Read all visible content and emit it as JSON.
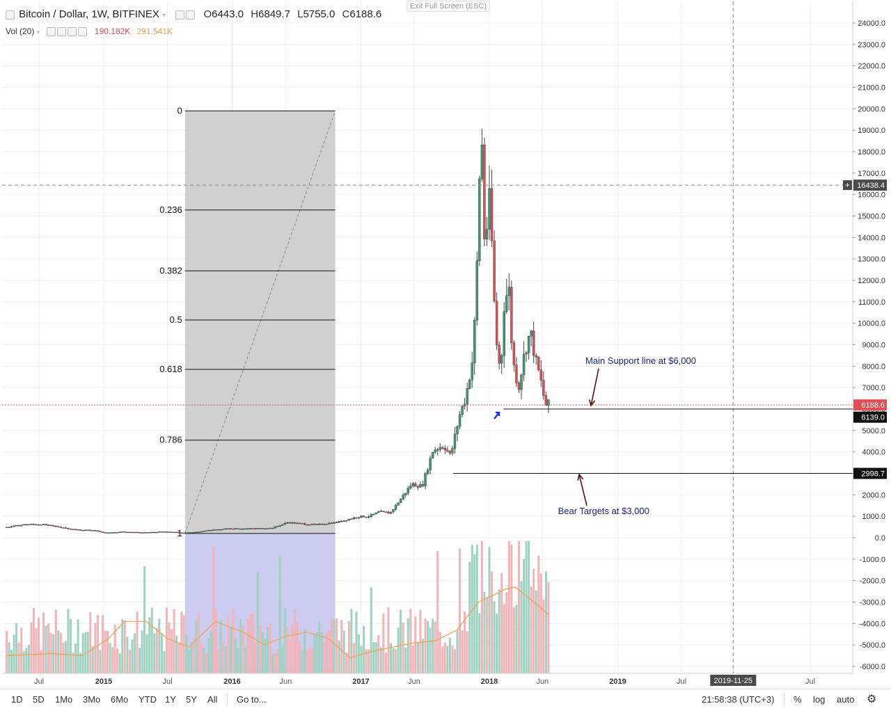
{
  "header": {
    "symbol": "Bitcoin / Dollar, 1W, BITFINEX",
    "ohlc": {
      "o_label": "O",
      "o": "6443.0",
      "h_label": "H",
      "h": "6849.7",
      "l_label": "L",
      "l": "5755.0",
      "c_label": "C",
      "c": "6188.6"
    },
    "volume_label": "Vol (20)",
    "volume_value": "190.182K",
    "volume_ma_value": "291.541K",
    "exit_fullscreen": "Exit Full Screen (ESC)"
  },
  "colors": {
    "up": "#3a9a79",
    "down": "#e04f55",
    "vol_up": "#9fd3c1",
    "vol_down": "#f2b4b8",
    "vol_ma": "#f0a050",
    "fib_zone": "#c8c8c8",
    "fib_zone_vol": "#c7c7ef",
    "annotation": "#1a237e",
    "arrow": "#5a1010",
    "price_line": "#e04f55"
  },
  "chart_data": {
    "type": "candlestick",
    "title": "Bitcoin / Dollar, 1W, BITFINEX",
    "y_ticks": [
      24000,
      23000,
      22000,
      21000,
      20000,
      19000,
      18000,
      17000,
      16000,
      15000,
      14000,
      13000,
      12000,
      11000,
      10000,
      9000,
      8000,
      7000,
      6000,
      5000,
      4000,
      3000,
      2000,
      1000,
      0,
      -1000,
      -2000,
      -3000,
      -4000,
      -5000,
      -6000
    ],
    "ylim": [
      -6300,
      24700
    ],
    "x_ticks": [
      "Jul",
      "2015",
      "Jul",
      "2016",
      "Jun",
      "2017",
      "Jun",
      "2018",
      "Jun",
      "2019",
      "Jul",
      "2019-11-25",
      "Jul"
    ],
    "x_tick_dates": [
      "2014-07-01",
      "2015-01-01",
      "2015-07-01",
      "2016-01-01",
      "2016-06-01",
      "2017-01-01",
      "2017-06-01",
      "2018-01-01",
      "2018-06-01",
      "2019-01-01",
      "2019-07-01",
      "2019-11-25",
      "2020-07-01"
    ],
    "price_series": [
      [
        "2014-03-31",
        470
      ],
      [
        "2014-06-01",
        620
      ],
      [
        "2014-07-15",
        620
      ],
      [
        "2014-09-15",
        470
      ],
      [
        "2014-10-15",
        380
      ],
      [
        "2014-12-15",
        330
      ],
      [
        "2015-01-15",
        220
      ],
      [
        "2015-03-01",
        270
      ],
      [
        "2015-05-01",
        235
      ],
      [
        "2015-07-01",
        280
      ],
      [
        "2015-08-20",
        230
      ],
      [
        "2015-09-20",
        240
      ],
      [
        "2015-11-01",
        340
      ],
      [
        "2016-01-01",
        430
      ],
      [
        "2016-03-01",
        420
      ],
      [
        "2016-05-01",
        450
      ],
      [
        "2016-06-15",
        720
      ],
      [
        "2016-07-15",
        660
      ],
      [
        "2016-09-01",
        600
      ],
      [
        "2016-11-01",
        720
      ],
      [
        "2017-01-01",
        980
      ],
      [
        "2017-02-01",
        1000
      ],
      [
        "2017-03-01",
        1200
      ],
      [
        "2017-04-01",
        1150
      ],
      [
        "2017-05-01",
        1800
      ],
      [
        "2017-06-01",
        2500
      ],
      [
        "2017-07-01",
        2400
      ],
      [
        "2017-08-01",
        4100
      ],
      [
        "2017-09-01",
        4300
      ],
      [
        "2017-09-20",
        3800
      ],
      [
        "2017-10-15",
        5700
      ],
      [
        "2017-11-01",
        6500
      ],
      [
        "2017-11-20",
        8200
      ],
      [
        "2017-12-01",
        10900
      ],
      [
        "2017-12-10",
        16500
      ],
      [
        "2017-12-17",
        19000
      ],
      [
        "2017-12-24",
        14000
      ],
      [
        "2018-01-01",
        14500
      ],
      [
        "2018-01-10",
        16000
      ],
      [
        "2018-01-20",
        11500
      ],
      [
        "2018-02-01",
        8200
      ],
      [
        "2018-02-10",
        8000
      ],
      [
        "2018-02-20",
        11200
      ],
      [
        "2018-03-05",
        11500
      ],
      [
        "2018-03-15",
        8300
      ],
      [
        "2018-04-01",
        7000
      ],
      [
        "2018-04-20",
        8800
      ],
      [
        "2018-05-05",
        9600
      ],
      [
        "2018-05-20",
        8200
      ],
      [
        "2018-06-01",
        7500
      ],
      [
        "2018-06-10",
        6700
      ],
      [
        "2018-06-18",
        6188.6
      ]
    ],
    "current_price": 6188.6,
    "crosshair_price": 16438.4,
    "crosshair_date": "2019-11-25",
    "label_6139": 6139.0,
    "support_level": 6000,
    "support_label": "Main Support line at $6,000",
    "bear_target": 2998.7,
    "bear_label": "Bear Targets at $3,000",
    "price_tags": {
      "current": "6188.6",
      "low": "6139.0",
      "target": "2998.7",
      "crosshair": "16438.4"
    },
    "fibonacci": {
      "high": 20000,
      "low": 200,
      "start_date": "2015-08-20",
      "end_date": "2016-10-20",
      "levels": [
        {
          "ratio": "0",
          "price": 19900
        },
        {
          "ratio": "0.236",
          "price": 15280
        },
        {
          "ratio": "0.382",
          "price": 12440
        },
        {
          "ratio": "0.5",
          "price": 10150
        },
        {
          "ratio": "0.618",
          "price": 7850
        },
        {
          "ratio": "0.786",
          "price": 4550
        },
        {
          "ratio": "1",
          "price": 200
        }
      ]
    },
    "volume_ma_series": [
      [
        "2014-04-01",
        -5500
      ],
      [
        "2014-08-01",
        -5400
      ],
      [
        "2014-11-01",
        -5500
      ],
      [
        "2015-01-15",
        -4700
      ],
      [
        "2015-03-01",
        -3900
      ],
      [
        "2015-05-01",
        -3900
      ],
      [
        "2015-07-01",
        -4700
      ],
      [
        "2015-09-01",
        -5100
      ],
      [
        "2015-11-15",
        -3900
      ],
      [
        "2016-02-01",
        -4400
      ],
      [
        "2016-04-01",
        -5000
      ],
      [
        "2016-06-01",
        -4600
      ],
      [
        "2016-08-01",
        -4400
      ],
      [
        "2016-10-01",
        -4700
      ],
      [
        "2016-12-01",
        -5600
      ],
      [
        "2017-02-01",
        -5300
      ],
      [
        "2017-04-01",
        -5100
      ],
      [
        "2017-06-01",
        -4900
      ],
      [
        "2017-08-01",
        -4800
      ],
      [
        "2017-10-01",
        -4300
      ],
      [
        "2017-12-01",
        -3000
      ],
      [
        "2018-01-10",
        -2700
      ],
      [
        "2018-02-15",
        -2400
      ],
      [
        "2018-03-15",
        -2300
      ],
      [
        "2018-04-15",
        -2700
      ],
      [
        "2018-05-15",
        -3100
      ],
      [
        "2018-06-20",
        -3600
      ]
    ]
  },
  "bottom_bar": {
    "ranges": [
      "1D",
      "5D",
      "1Mo",
      "3Mo",
      "6Mo",
      "YTD",
      "1Y",
      "5Y",
      "All"
    ],
    "goto": "Go to...",
    "time": "21:58:38 (UTC+3)",
    "percent": "%",
    "log": "log",
    "auto": "auto",
    "settings_icon": "gear-icon"
  }
}
